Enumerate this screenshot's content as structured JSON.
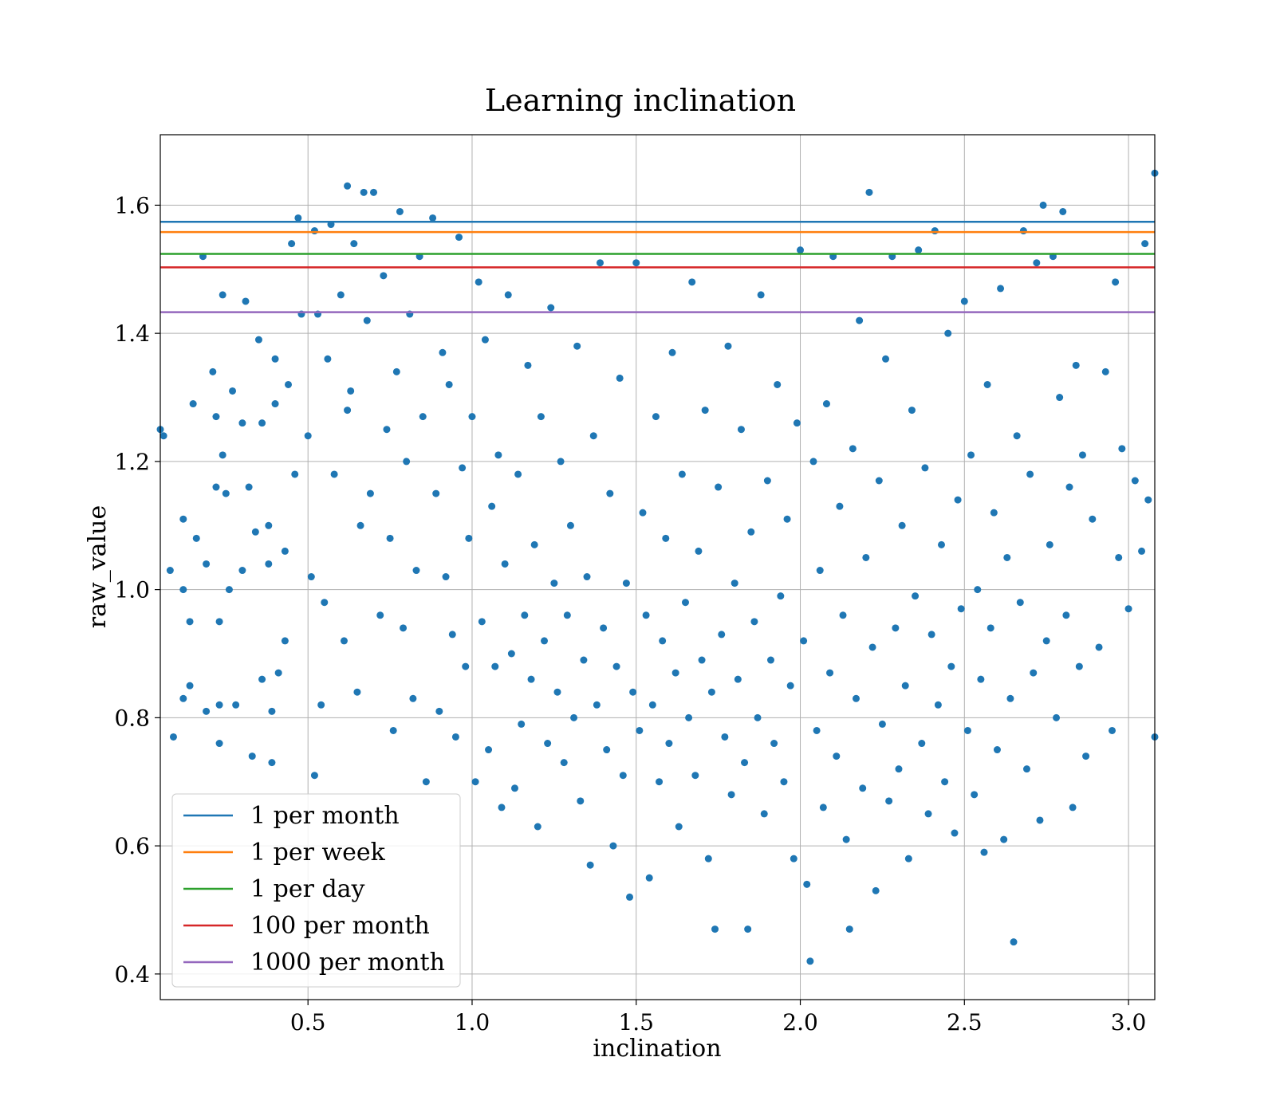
{
  "chart_data": {
    "type": "scatter",
    "title": "Learning inclination",
    "xlabel": "inclination",
    "ylabel": "raw_value",
    "xlim": [
      0.05,
      3.08
    ],
    "ylim": [
      0.36,
      1.71
    ],
    "xticks": [
      0.5,
      1.0,
      1.5,
      2.0,
      2.5,
      3.0
    ],
    "yticks": [
      0.4,
      0.6,
      0.8,
      1.0,
      1.2,
      1.4,
      1.6
    ],
    "xtick_labels": [
      "0.5",
      "1.0",
      "1.5",
      "2.0",
      "2.5",
      "3.0"
    ],
    "ytick_labels": [
      "0.4",
      "0.6",
      "0.8",
      "1.0",
      "1.2",
      "1.4",
      "1.6"
    ],
    "grid": true,
    "legend_position": "lower-left",
    "point_color": "#1f77b4",
    "hlines": [
      {
        "name": "1 per month",
        "y": 1.574,
        "color": "#1f77b4"
      },
      {
        "name": "1 per week",
        "y": 1.558,
        "color": "#ff7f0e"
      },
      {
        "name": "1 per day",
        "y": 1.524,
        "color": "#2ca02c"
      },
      {
        "name": "100 per month",
        "y": 1.503,
        "color": "#d62728"
      },
      {
        "name": "1000 per month",
        "y": 1.433,
        "color": "#9467bd"
      }
    ],
    "points": [
      [
        0.05,
        1.25
      ],
      [
        0.06,
        1.24
      ],
      [
        0.08,
        1.03
      ],
      [
        0.09,
        0.77
      ],
      [
        0.12,
        1.11
      ],
      [
        0.12,
        1.0
      ],
      [
        0.12,
        0.83
      ],
      [
        0.14,
        0.85
      ],
      [
        0.14,
        0.95
      ],
      [
        0.15,
        1.29
      ],
      [
        0.16,
        1.08
      ],
      [
        0.18,
        1.52
      ],
      [
        0.19,
        1.04
      ],
      [
        0.19,
        0.81
      ],
      [
        0.21,
        1.34
      ],
      [
        0.22,
        1.27
      ],
      [
        0.22,
        1.16
      ],
      [
        0.23,
        0.95
      ],
      [
        0.23,
        0.82
      ],
      [
        0.23,
        0.76
      ],
      [
        0.24,
        1.46
      ],
      [
        0.24,
        1.21
      ],
      [
        0.25,
        1.15
      ],
      [
        0.26,
        1.0
      ],
      [
        0.27,
        1.31
      ],
      [
        0.28,
        0.82
      ],
      [
        0.3,
        1.26
      ],
      [
        0.3,
        1.03
      ],
      [
        0.31,
        1.45
      ],
      [
        0.32,
        1.16
      ],
      [
        0.33,
        0.74
      ],
      [
        0.34,
        1.09
      ],
      [
        0.35,
        1.39
      ],
      [
        0.36,
        1.26
      ],
      [
        0.36,
        0.86
      ],
      [
        0.38,
        1.1
      ],
      [
        0.38,
        1.04
      ],
      [
        0.39,
        0.81
      ],
      [
        0.39,
        0.73
      ],
      [
        0.4,
        1.29
      ],
      [
        0.4,
        1.36
      ],
      [
        0.41,
        0.87
      ],
      [
        0.43,
        1.06
      ],
      [
        0.43,
        0.92
      ],
      [
        0.44,
        1.32
      ],
      [
        0.45,
        1.54
      ],
      [
        0.46,
        1.18
      ],
      [
        0.47,
        1.58
      ],
      [
        0.48,
        1.43
      ],
      [
        0.5,
        1.24
      ],
      [
        0.51,
        1.02
      ],
      [
        0.52,
        1.56
      ],
      [
        0.52,
        0.71
      ],
      [
        0.53,
        1.43
      ],
      [
        0.54,
        0.82
      ],
      [
        0.55,
        0.98
      ],
      [
        0.56,
        1.36
      ],
      [
        0.57,
        1.57
      ],
      [
        0.58,
        1.18
      ],
      [
        0.6,
        1.46
      ],
      [
        0.61,
        0.92
      ],
      [
        0.62,
        1.28
      ],
      [
        0.62,
        1.63
      ],
      [
        0.63,
        1.31
      ],
      [
        0.64,
        1.54
      ],
      [
        0.65,
        0.84
      ],
      [
        0.66,
        1.1
      ],
      [
        0.67,
        1.62
      ],
      [
        0.68,
        1.42
      ],
      [
        0.69,
        1.15
      ],
      [
        0.7,
        1.62
      ],
      [
        0.72,
        0.96
      ],
      [
        0.73,
        1.49
      ],
      [
        0.74,
        1.25
      ],
      [
        0.75,
        1.08
      ],
      [
        0.76,
        0.78
      ],
      [
        0.77,
        1.34
      ],
      [
        0.78,
        1.59
      ],
      [
        0.79,
        0.94
      ],
      [
        0.8,
        1.2
      ],
      [
        0.81,
        1.43
      ],
      [
        0.82,
        0.83
      ],
      [
        0.83,
        1.03
      ],
      [
        0.84,
        1.52
      ],
      [
        0.85,
        1.27
      ],
      [
        0.86,
        0.7
      ],
      [
        0.88,
        1.58
      ],
      [
        0.89,
        1.15
      ],
      [
        0.9,
        0.81
      ],
      [
        0.91,
        1.37
      ],
      [
        0.92,
        1.02
      ],
      [
        0.93,
        1.32
      ],
      [
        0.94,
        0.93
      ],
      [
        0.95,
        0.77
      ],
      [
        0.96,
        1.55
      ],
      [
        0.97,
        1.19
      ],
      [
        0.98,
        0.88
      ],
      [
        0.99,
        1.08
      ],
      [
        1.0,
        1.27
      ],
      [
        1.01,
        0.7
      ],
      [
        1.02,
        1.48
      ],
      [
        1.03,
        0.95
      ],
      [
        1.04,
        1.39
      ],
      [
        1.05,
        0.75
      ],
      [
        1.06,
        1.13
      ],
      [
        1.07,
        0.88
      ],
      [
        1.08,
        1.21
      ],
      [
        1.09,
        0.66
      ],
      [
        1.1,
        1.04
      ],
      [
        1.11,
        1.46
      ],
      [
        1.12,
        0.9
      ],
      [
        1.13,
        0.69
      ],
      [
        1.14,
        1.18
      ],
      [
        1.15,
        0.79
      ],
      [
        1.16,
        0.96
      ],
      [
        1.17,
        1.35
      ],
      [
        1.18,
        0.86
      ],
      [
        1.19,
        1.07
      ],
      [
        1.2,
        0.63
      ],
      [
        1.21,
        1.27
      ],
      [
        1.22,
        0.92
      ],
      [
        1.23,
        0.76
      ],
      [
        1.24,
        1.44
      ],
      [
        1.25,
        1.01
      ],
      [
        1.26,
        0.84
      ],
      [
        1.27,
        1.2
      ],
      [
        1.28,
        0.73
      ],
      [
        1.29,
        0.96
      ],
      [
        1.3,
        1.1
      ],
      [
        1.31,
        0.8
      ],
      [
        1.32,
        1.38
      ],
      [
        1.33,
        0.67
      ],
      [
        1.34,
        0.89
      ],
      [
        1.35,
        1.02
      ],
      [
        1.36,
        0.57
      ],
      [
        1.37,
        1.24
      ],
      [
        1.38,
        0.82
      ],
      [
        1.39,
        1.51
      ],
      [
        1.4,
        0.94
      ],
      [
        1.41,
        0.75
      ],
      [
        1.42,
        1.15
      ],
      [
        1.43,
        0.6
      ],
      [
        1.44,
        0.88
      ],
      [
        1.45,
        1.33
      ],
      [
        1.46,
        0.71
      ],
      [
        1.47,
        1.01
      ],
      [
        1.48,
        0.52
      ],
      [
        1.49,
        0.84
      ],
      [
        1.5,
        1.51
      ],
      [
        1.51,
        0.78
      ],
      [
        1.52,
        1.12
      ],
      [
        1.53,
        0.96
      ],
      [
        1.54,
        0.55
      ],
      [
        1.55,
        0.82
      ],
      [
        1.56,
        1.27
      ],
      [
        1.57,
        0.7
      ],
      [
        1.58,
        0.92
      ],
      [
        1.59,
        1.08
      ],
      [
        1.6,
        0.76
      ],
      [
        1.61,
        1.37
      ],
      [
        1.62,
        0.87
      ],
      [
        1.63,
        0.63
      ],
      [
        1.64,
        1.18
      ],
      [
        1.65,
        0.98
      ],
      [
        1.66,
        0.8
      ],
      [
        1.67,
        1.48
      ],
      [
        1.68,
        0.71
      ],
      [
        1.69,
        1.06
      ],
      [
        1.7,
        0.89
      ],
      [
        1.71,
        1.28
      ],
      [
        1.72,
        0.58
      ],
      [
        1.73,
        0.84
      ],
      [
        1.74,
        0.47
      ],
      [
        1.75,
        1.16
      ],
      [
        1.76,
        0.93
      ],
      [
        1.77,
        0.77
      ],
      [
        1.78,
        1.38
      ],
      [
        1.79,
        0.68
      ],
      [
        1.8,
        1.01
      ],
      [
        1.81,
        0.86
      ],
      [
        1.82,
        1.25
      ],
      [
        1.83,
        0.73
      ],
      [
        1.84,
        0.47
      ],
      [
        1.85,
        1.09
      ],
      [
        1.86,
        0.95
      ],
      [
        1.87,
        0.8
      ],
      [
        1.88,
        1.46
      ],
      [
        1.89,
        0.65
      ],
      [
        1.9,
        1.17
      ],
      [
        1.91,
        0.89
      ],
      [
        1.92,
        0.76
      ],
      [
        1.93,
        1.32
      ],
      [
        1.94,
        0.99
      ],
      [
        1.95,
        0.7
      ],
      [
        1.96,
        1.11
      ],
      [
        1.97,
        0.85
      ],
      [
        1.98,
        0.58
      ],
      [
        1.99,
        1.26
      ],
      [
        2.0,
        1.53
      ],
      [
        2.01,
        0.92
      ],
      [
        2.02,
        0.54
      ],
      [
        2.03,
        0.42
      ],
      [
        2.04,
        1.2
      ],
      [
        2.05,
        0.78
      ],
      [
        2.06,
        1.03
      ],
      [
        2.07,
        0.66
      ],
      [
        2.08,
        1.29
      ],
      [
        2.09,
        0.87
      ],
      [
        2.1,
        1.52
      ],
      [
        2.11,
        0.74
      ],
      [
        2.12,
        1.13
      ],
      [
        2.13,
        0.96
      ],
      [
        2.14,
        0.61
      ],
      [
        2.15,
        0.47
      ],
      [
        2.16,
        1.22
      ],
      [
        2.17,
        0.83
      ],
      [
        2.18,
        1.42
      ],
      [
        2.19,
        0.69
      ],
      [
        2.2,
        1.05
      ],
      [
        2.21,
        1.62
      ],
      [
        2.22,
        0.91
      ],
      [
        2.23,
        0.53
      ],
      [
        2.24,
        1.17
      ],
      [
        2.25,
        0.79
      ],
      [
        2.26,
        1.36
      ],
      [
        2.27,
        0.67
      ],
      [
        2.28,
        1.52
      ],
      [
        2.29,
        0.94
      ],
      [
        2.3,
        0.72
      ],
      [
        2.31,
        1.1
      ],
      [
        2.32,
        0.85
      ],
      [
        2.33,
        0.58
      ],
      [
        2.34,
        1.28
      ],
      [
        2.35,
        0.99
      ],
      [
        2.36,
        1.53
      ],
      [
        2.37,
        0.76
      ],
      [
        2.38,
        1.19
      ],
      [
        2.39,
        0.65
      ],
      [
        2.4,
        0.93
      ],
      [
        2.41,
        1.56
      ],
      [
        2.42,
        0.82
      ],
      [
        2.43,
        1.07
      ],
      [
        2.44,
        0.7
      ],
      [
        2.45,
        1.4
      ],
      [
        2.46,
        0.88
      ],
      [
        2.47,
        0.62
      ],
      [
        2.48,
        1.14
      ],
      [
        2.49,
        0.97
      ],
      [
        2.5,
        1.45
      ],
      [
        2.51,
        0.78
      ],
      [
        2.52,
        1.21
      ],
      [
        2.53,
        0.68
      ],
      [
        2.54,
        1.0
      ],
      [
        2.55,
        0.86
      ],
      [
        2.56,
        0.59
      ],
      [
        2.57,
        1.32
      ],
      [
        2.58,
        0.94
      ],
      [
        2.59,
        1.12
      ],
      [
        2.6,
        0.75
      ],
      [
        2.61,
        1.47
      ],
      [
        2.62,
        0.61
      ],
      [
        2.63,
        1.05
      ],
      [
        2.64,
        0.83
      ],
      [
        2.65,
        0.45
      ],
      [
        2.66,
        1.24
      ],
      [
        2.67,
        0.98
      ],
      [
        2.68,
        1.56
      ],
      [
        2.69,
        0.72
      ],
      [
        2.7,
        1.18
      ],
      [
        2.71,
        0.87
      ],
      [
        2.72,
        1.51
      ],
      [
        2.73,
        0.64
      ],
      [
        2.74,
        1.6
      ],
      [
        2.75,
        0.92
      ],
      [
        2.76,
        1.07
      ],
      [
        2.77,
        1.52
      ],
      [
        2.78,
        0.8
      ],
      [
        2.79,
        1.3
      ],
      [
        2.8,
        1.59
      ],
      [
        2.81,
        0.96
      ],
      [
        2.82,
        1.16
      ],
      [
        2.83,
        0.66
      ],
      [
        2.84,
        1.35
      ],
      [
        2.85,
        0.88
      ],
      [
        2.86,
        1.21
      ],
      [
        2.87,
        0.74
      ],
      [
        2.89,
        1.11
      ],
      [
        2.91,
        0.91
      ],
      [
        2.93,
        1.34
      ],
      [
        2.95,
        0.78
      ],
      [
        2.96,
        1.48
      ],
      [
        2.97,
        1.05
      ],
      [
        2.98,
        1.22
      ],
      [
        3.0,
        0.97
      ],
      [
        3.02,
        1.17
      ],
      [
        3.04,
        1.06
      ],
      [
        3.05,
        1.54
      ],
      [
        3.06,
        1.14
      ],
      [
        3.08,
        1.65
      ],
      [
        3.08,
        0.77
      ]
    ]
  }
}
